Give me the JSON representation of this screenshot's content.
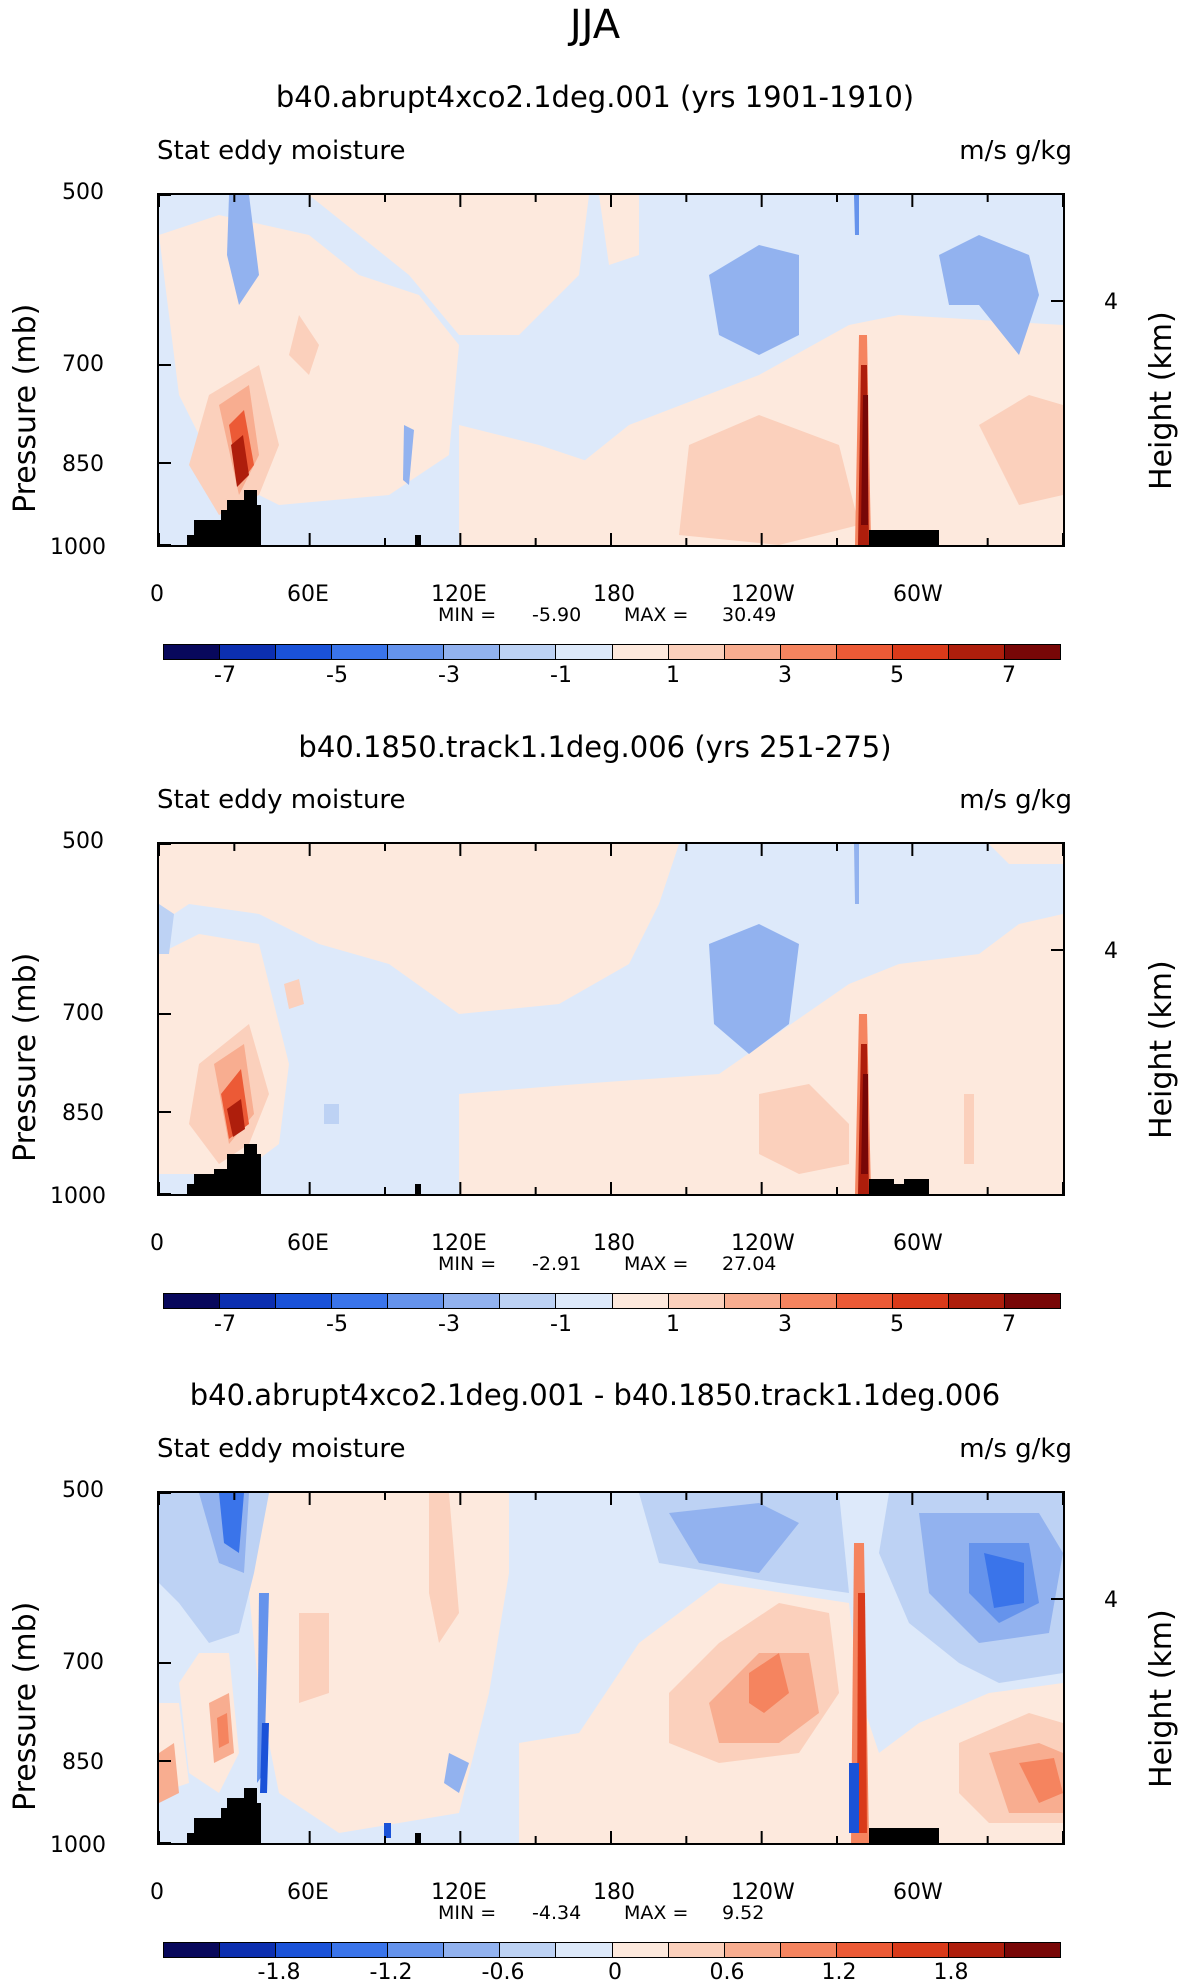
{
  "title": "JJA",
  "chart_data": [
    {
      "type": "heatmap",
      "title": "b40.abrupt4xco2.1deg.001 (yrs 1901-1910)",
      "left_label": "Stat eddy moisture",
      "right_label": "m/s g/kg",
      "ylabel": "Pressure (mb)",
      "y2label": "Height (km)",
      "y_ticks": [
        "500",
        "700",
        "850",
        "1000"
      ],
      "y2_ticks": [
        "4"
      ],
      "x_ticks": [
        "0",
        "60E",
        "120E",
        "180",
        "120W",
        "60W"
      ],
      "ylim": [
        1000,
        500
      ],
      "min_label": "MIN =",
      "min": "-5.90",
      "max_label": "MAX =",
      "max": "30.49",
      "colorbar_labels": [
        "-7",
        "-5",
        "-3",
        "-1",
        "1",
        "3",
        "5",
        "7"
      ]
    },
    {
      "type": "heatmap",
      "title": "b40.1850.track1.1deg.006 (yrs 251-275)",
      "left_label": "Stat eddy moisture",
      "right_label": "m/s g/kg",
      "ylabel": "Pressure (mb)",
      "y2label": "Height (km)",
      "y_ticks": [
        "500",
        "700",
        "850",
        "1000"
      ],
      "y2_ticks": [
        "4"
      ],
      "x_ticks": [
        "0",
        "60E",
        "120E",
        "180",
        "120W",
        "60W"
      ],
      "ylim": [
        1000,
        500
      ],
      "min_label": "MIN =",
      "min": "-2.91",
      "max_label": "MAX =",
      "max": "27.04",
      "colorbar_labels": [
        "-7",
        "-5",
        "-3",
        "-1",
        "1",
        "3",
        "5",
        "7"
      ]
    },
    {
      "type": "heatmap",
      "title": "b40.abrupt4xco2.1deg.001 - b40.1850.track1.1deg.006",
      "left_label": "Stat eddy moisture",
      "right_label": "m/s g/kg",
      "ylabel": "Pressure (mb)",
      "y2label": "Height (km)",
      "y_ticks": [
        "500",
        "700",
        "850",
        "1000"
      ],
      "y2_ticks": [
        "4"
      ],
      "x_ticks": [
        "0",
        "60E",
        "120E",
        "180",
        "120W",
        "60W"
      ],
      "ylim": [
        1000,
        500
      ],
      "min_label": "MIN =",
      "min": "-4.34",
      "max_label": "MAX =",
      "max": "9.52",
      "colorbar_labels": [
        "-1.8",
        "-1.2",
        "-0.6",
        "0",
        "0.6",
        "1.2",
        "1.8"
      ]
    }
  ],
  "colors": {
    "scale": [
      "#08085c",
      "#0c2fb0",
      "#1a52d8",
      "#3a74ea",
      "#6593ec",
      "#92b2ef",
      "#bdd2f4",
      "#dde9fa",
      "#fde9dd",
      "#fbd0bc",
      "#f8ad90",
      "#f5845f",
      "#ec5a36",
      "#d93a1a",
      "#ae1e0c",
      "#780707"
    ],
    "terrain": "#000000"
  }
}
